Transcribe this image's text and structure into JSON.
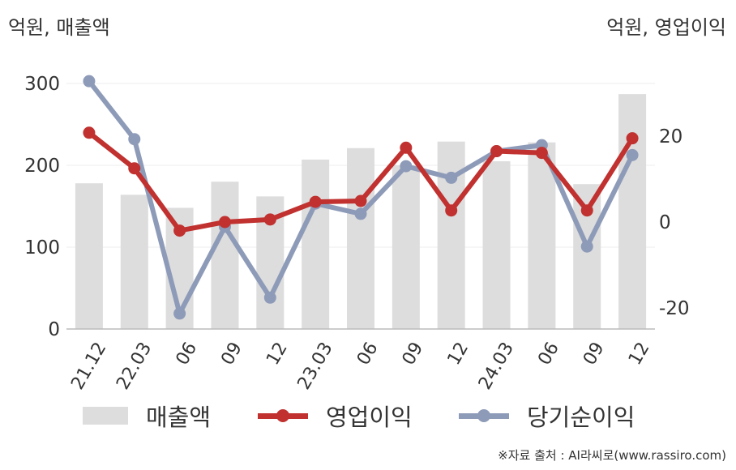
{
  "units": {
    "left": "억원, 매출액",
    "right": "억원, 영업이익"
  },
  "source": "※자료 출처 : AI라씨로(www.rassiro.com)",
  "colors": {
    "bar": "#dddddd",
    "operating": "#c0312f",
    "net": "#8e9bb8",
    "grid": "#ececec",
    "text": "#333333"
  },
  "chart_data": {
    "type": "bar",
    "categories": [
      "21.12",
      "22.03",
      "06",
      "09",
      "12",
      "23.03",
      "06",
      "09",
      "12",
      "24.03",
      "06",
      "09",
      "12"
    ],
    "y_left": {
      "lim": [
        0,
        300
      ],
      "ticks": [
        0,
        100,
        200,
        300
      ]
    },
    "y_right": {
      "lim": [
        -28,
        28
      ],
      "ticks": [
        -20,
        0,
        20
      ]
    },
    "grid": true,
    "legend_position": "bottom",
    "series": [
      {
        "name": "매출액",
        "type": "bar",
        "axis": "left",
        "color": "#dddddd",
        "values": [
          178,
          164,
          148,
          180,
          162,
          207,
          221,
          200,
          229,
          205,
          228,
          177,
          287
        ]
      },
      {
        "name": "영업이익",
        "type": "line",
        "axis": "right",
        "color": "#c0312f",
        "values": [
          20.8,
          12.5,
          -2.0,
          0.0,
          0.6,
          4.7,
          4.9,
          17.3,
          2.7,
          16.5,
          16.1,
          2.7,
          19.5
        ]
      },
      {
        "name": "당기순이익",
        "type": "line",
        "axis": "right",
        "color": "#8e9bb8",
        "values": [
          32.8,
          19.3,
          -21.3,
          -1.1,
          -17.6,
          4.3,
          1.9,
          13.0,
          10.3,
          16.5,
          17.9,
          -5.7,
          15.6
        ]
      }
    ]
  }
}
